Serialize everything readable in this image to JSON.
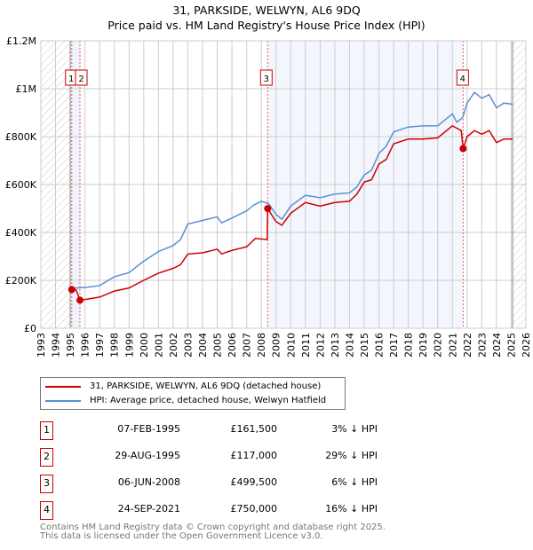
{
  "chart_data": {
    "type": "line",
    "title": "31, PARKSIDE, WELWYN, AL6 9DQ",
    "subtitle": "Price paid vs. HM Land Registry's House Price Index (HPI)",
    "xlim": [
      1993,
      2026
    ],
    "ylim": [
      0,
      1200000
    ],
    "x_ticks": [
      "1993",
      "1994",
      "1995",
      "1996",
      "1997",
      "1998",
      "1999",
      "2000",
      "2001",
      "2002",
      "2003",
      "2004",
      "2005",
      "2006",
      "2007",
      "2008",
      "2009",
      "2010",
      "2011",
      "2012",
      "2013",
      "2014",
      "2015",
      "2016",
      "2017",
      "2018",
      "2019",
      "2020",
      "2021",
      "2022",
      "2023",
      "2024",
      "2025",
      "2026"
    ],
    "y_ticks": [
      {
        "v": 0,
        "label": "£0"
      },
      {
        "v": 200000,
        "label": "£200K"
      },
      {
        "v": 400000,
        "label": "£400K"
      },
      {
        "v": 600000,
        "label": "£600K"
      },
      {
        "v": 800000,
        "label": "£800K"
      },
      {
        "v": 1000000,
        "label": "£1M"
      },
      {
        "v": 1200000,
        "label": "£1.2M"
      }
    ],
    "grid": true,
    "series": [
      {
        "name": "31, PARKSIDE, WELWYN, AL6 9DQ (detached house)",
        "color": "#cc0000",
        "points": [
          [
            1995.1,
            161.5
          ],
          [
            1995.4,
            160
          ],
          [
            1995.66,
            117
          ],
          [
            1996,
            120
          ],
          [
            1997,
            130
          ],
          [
            1998,
            155
          ],
          [
            1999,
            168
          ],
          [
            2000,
            200
          ],
          [
            2001,
            230
          ],
          [
            2002,
            250
          ],
          [
            2002.5,
            265
          ],
          [
            2003,
            310
          ],
          [
            2004,
            315
          ],
          [
            2005,
            330
          ],
          [
            2005.3,
            310
          ],
          [
            2006,
            325
          ],
          [
            2007,
            340
          ],
          [
            2007.6,
            375
          ],
          [
            2008.4,
            370
          ],
          [
            2008.43,
            499.5
          ],
          [
            2009,
            445
          ],
          [
            2009.4,
            430
          ],
          [
            2010,
            480
          ],
          [
            2011,
            525
          ],
          [
            2012,
            510
          ],
          [
            2013,
            525
          ],
          [
            2014,
            530
          ],
          [
            2014.5,
            560
          ],
          [
            2015,
            610
          ],
          [
            2015.5,
            620
          ],
          [
            2016,
            685
          ],
          [
            2016.5,
            705
          ],
          [
            2017,
            770
          ],
          [
            2018,
            790
          ],
          [
            2019,
            790
          ],
          [
            2020,
            795
          ],
          [
            2021,
            845
          ],
          [
            2021.6,
            825
          ],
          [
            2021.73,
            750
          ],
          [
            2022,
            800
          ],
          [
            2022.5,
            825
          ],
          [
            2023,
            810
          ],
          [
            2023.5,
            825
          ],
          [
            2024,
            775
          ],
          [
            2024.5,
            790
          ],
          [
            2025.1,
            790
          ]
        ]
      },
      {
        "name": "HPI: Average price, detached house, Welwyn Hatfield",
        "color": "#5b8fd4",
        "points": [
          [
            1995.1,
            167
          ],
          [
            1996,
            170
          ],
          [
            1997,
            178
          ],
          [
            1998,
            215
          ],
          [
            1999,
            232
          ],
          [
            2000,
            280
          ],
          [
            2001,
            320
          ],
          [
            2002,
            345
          ],
          [
            2002.5,
            370
          ],
          [
            2003,
            435
          ],
          [
            2004,
            450
          ],
          [
            2005,
            465
          ],
          [
            2005.3,
            440
          ],
          [
            2006,
            460
          ],
          [
            2007,
            490
          ],
          [
            2007.5,
            515
          ],
          [
            2008,
            530
          ],
          [
            2008.5,
            520
          ],
          [
            2009,
            475
          ],
          [
            2009.4,
            455
          ],
          [
            2010,
            510
          ],
          [
            2011,
            555
          ],
          [
            2012,
            545
          ],
          [
            2013,
            560
          ],
          [
            2014,
            565
          ],
          [
            2014.5,
            590
          ],
          [
            2015,
            640
          ],
          [
            2015.5,
            660
          ],
          [
            2016,
            730
          ],
          [
            2016.5,
            760
          ],
          [
            2017,
            820
          ],
          [
            2018,
            840
          ],
          [
            2019,
            845
          ],
          [
            2020,
            845
          ],
          [
            2021,
            895
          ],
          [
            2021.3,
            860
          ],
          [
            2021.7,
            880
          ],
          [
            2022,
            940
          ],
          [
            2022.5,
            985
          ],
          [
            2023,
            960
          ],
          [
            2023.5,
            975
          ],
          [
            2024,
            920
          ],
          [
            2024.5,
            940
          ],
          [
            2025.1,
            935
          ]
        ]
      }
    ],
    "point_units": "thousands GBP",
    "sales": [
      {
        "n": "1",
        "x": 1995.1,
        "y": 161.5
      },
      {
        "n": "2",
        "x": 1995.66,
        "y": 117
      },
      {
        "n": "3",
        "x": 2008.43,
        "y": 499.5
      },
      {
        "n": "4",
        "x": 2021.73,
        "y": 750
      }
    ],
    "legend_placement": "below"
  },
  "legend": [
    "31, PARKSIDE, WELWYN, AL6 9DQ (detached house)",
    "HPI: Average price, detached house, Welwyn Hatfield"
  ],
  "transactions": [
    {
      "n": "1",
      "date": "07-FEB-1995",
      "price": "£161,500",
      "hpi": "3% ↓ HPI"
    },
    {
      "n": "2",
      "date": "29-AUG-1995",
      "price": "£117,000",
      "hpi": "29% ↓ HPI"
    },
    {
      "n": "3",
      "date": "06-JUN-2008",
      "price": "£499,500",
      "hpi": "6% ↓ HPI"
    },
    {
      "n": "4",
      "date": "24-SEP-2021",
      "price": "£750,000",
      "hpi": "16% ↓ HPI"
    }
  ],
  "footer": [
    "Contains HM Land Registry data © Crown copyright and database right 2025.",
    "This data is licensed under the Open Government Licence v3.0."
  ]
}
